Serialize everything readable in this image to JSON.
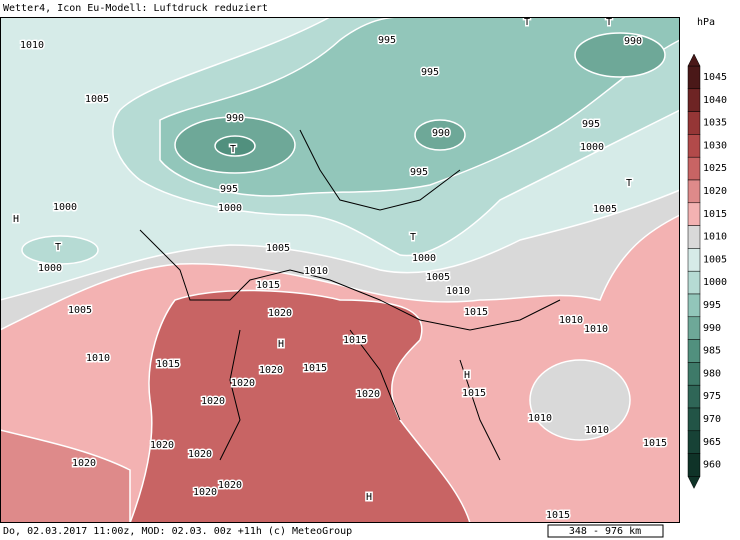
{
  "header": {
    "title": "Wetter4, Icon Eu-Modell: Luftdruck reduziert"
  },
  "footer": {
    "text": "Do, 02.03.2017 11:00z, MOD: 02.03. 00z +11h (c) MeteoGroup",
    "scale": "348 - 976 km"
  },
  "legend": {
    "unit": "hPa",
    "items": [
      {
        "label": "1045",
        "color": "#4a1818"
      },
      {
        "label": "1040",
        "color": "#6e2424"
      },
      {
        "label": "1035",
        "color": "#953636"
      },
      {
        "label": "1030",
        "color": "#b24a4a"
      },
      {
        "label": "1025",
        "color": "#c86464"
      },
      {
        "label": "1020",
        "color": "#de8a8a"
      },
      {
        "label": "1015",
        "color": "#f3b2b2"
      },
      {
        "label": "1010",
        "color": "#d9d9d9"
      },
      {
        "label": "1005",
        "color": "#d6ebe8"
      },
      {
        "label": "1000",
        "color": "#b6dbd4"
      },
      {
        "label": "995",
        "color": "#92c6ba"
      },
      {
        "label": "990",
        "color": "#6ea898"
      },
      {
        "label": "985",
        "color": "#51907e"
      },
      {
        "label": "980",
        "color": "#3e7a69"
      },
      {
        "label": "975",
        "color": "#2f6657"
      },
      {
        "label": "970",
        "color": "#225446"
      },
      {
        "label": "965",
        "color": "#174236"
      },
      {
        "label": "960",
        "color": "#0f3328"
      }
    ]
  },
  "map": {
    "labels": [
      "1010",
      "1005",
      "995",
      "995",
      "990",
      "990",
      "990",
      "995",
      "1000",
      "995",
      "995",
      "1000",
      "1000",
      "1005",
      "1000",
      "1000",
      "1005",
      "1010",
      "1005",
      "1015",
      "1010",
      "1005",
      "1020",
      "1015",
      "1010",
      "1010",
      "1015",
      "1010",
      "1015",
      "1020",
      "1015",
      "1020",
      "1015",
      "1020",
      "1020",
      "1010",
      "1010",
      "1020",
      "1015",
      "1020",
      "1020",
      "1020",
      "1020",
      "1015",
      "T",
      "T",
      "T",
      "T",
      "H",
      "H",
      "H",
      "H",
      "T",
      "T"
    ]
  }
}
